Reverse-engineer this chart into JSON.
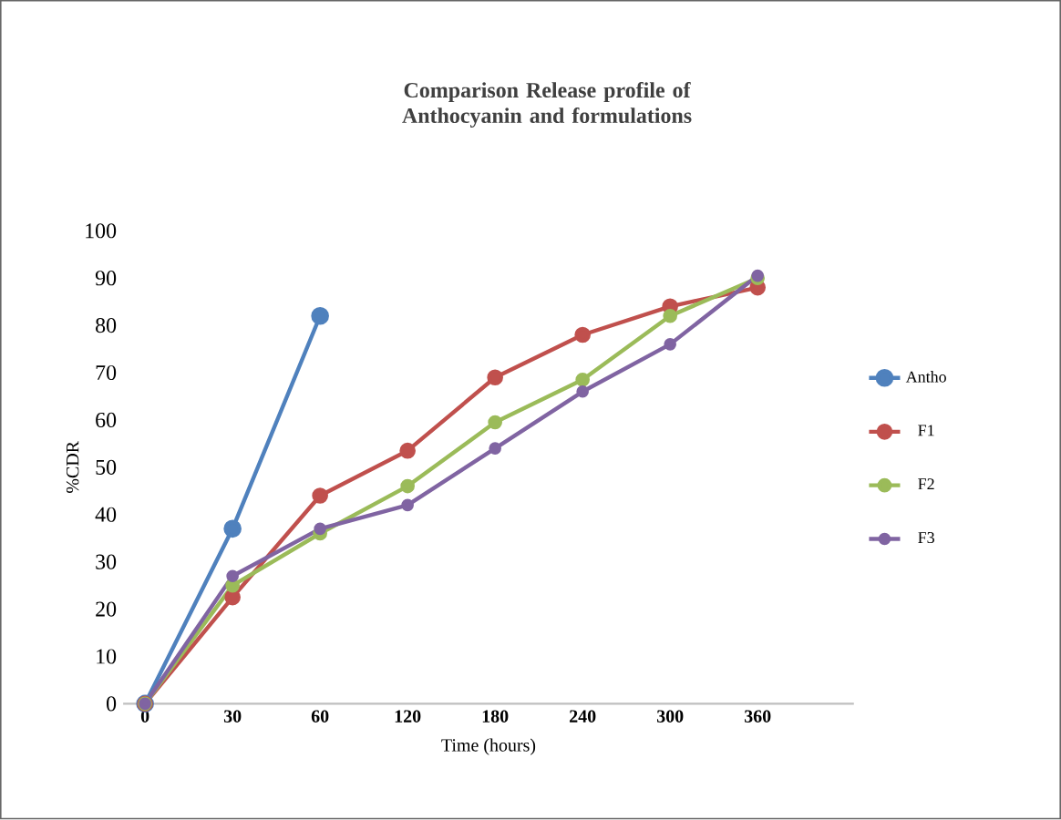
{
  "chart_data": {
    "type": "line",
    "title": "Comparison Release profile of Anthocyanin and formulations",
    "xlabel": "Time (hours)",
    "ylabel": "%CDR",
    "categories": [
      "0",
      "30",
      "60",
      "120",
      "180",
      "240",
      "300",
      "360"
    ],
    "series": [
      {
        "name": "Antho",
        "color": "#4f81bd",
        "values": [
          0,
          37,
          82,
          null,
          null,
          null,
          null,
          null
        ]
      },
      {
        "name": "F1",
        "color": "#c0504d",
        "values": [
          0,
          22.5,
          44,
          53.5,
          69,
          78,
          84,
          88
        ]
      },
      {
        "name": "F2",
        "color": "#9bbb59",
        "values": [
          0,
          25,
          36,
          46,
          59.5,
          68.5,
          82,
          90
        ]
      },
      {
        "name": "F3",
        "color": "#8064a2",
        "values": [
          0,
          27,
          37,
          42,
          54,
          66,
          76,
          90.5
        ]
      }
    ],
    "ylim": [
      0,
      100
    ],
    "yticks": [
      0,
      10,
      20,
      30,
      40,
      50,
      60,
      70,
      80,
      90,
      100
    ],
    "grid": false,
    "legend": "right",
    "marker": "circle",
    "line_style": "solid"
  }
}
